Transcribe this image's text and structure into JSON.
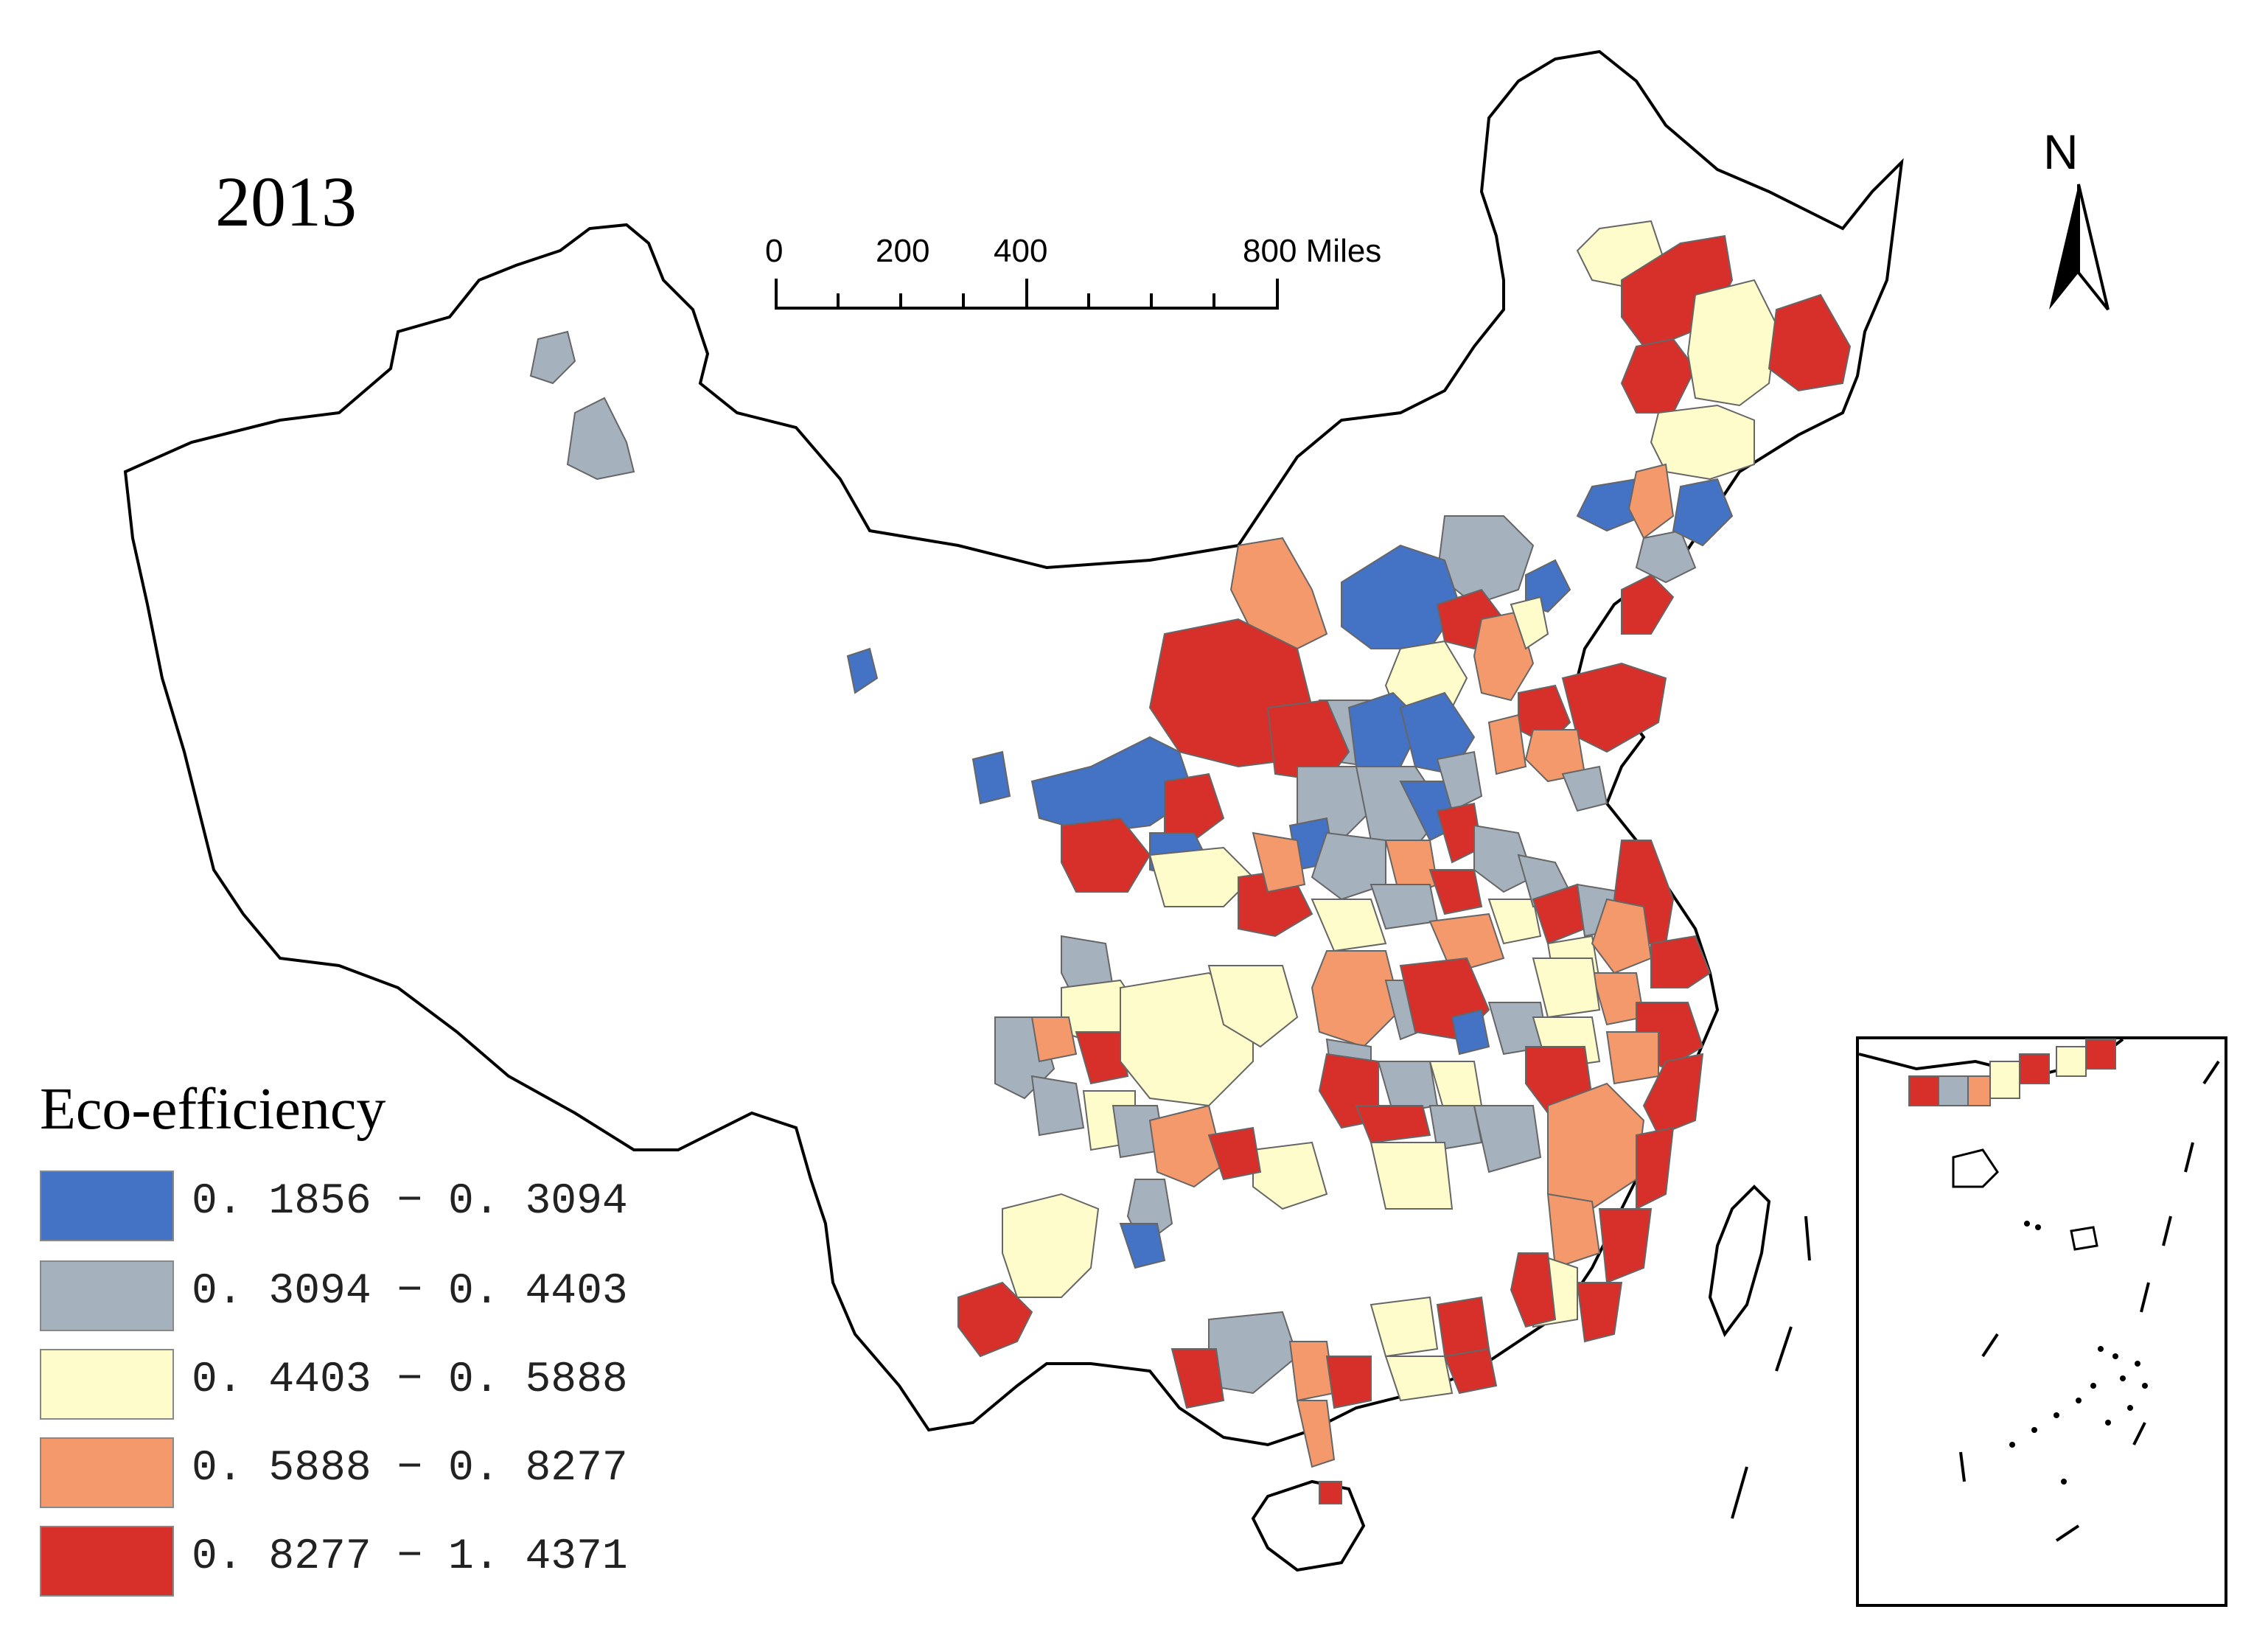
{
  "map": {
    "year": "2013",
    "legend": {
      "title": "Eco-efficiency",
      "classes": [
        {
          "label": "0. 1856 − 0. 3094",
          "color": "#4472c4"
        },
        {
          "label": "0. 3094 − 0. 4403",
          "color": "#a5b1bd"
        },
        {
          "label": "0. 4403 − 0. 5888",
          "color": "#fffccb"
        },
        {
          "label": "0. 5888 − 0. 8277",
          "color": "#f3996b"
        },
        {
          "label": "0. 8277 − 1. 4371",
          "color": "#d7302b"
        }
      ]
    },
    "scale_bar": {
      "labels": [
        "0",
        "200",
        "400",
        "800 Miles"
      ]
    },
    "north_arrow": {
      "label": "N",
      "icon": "north-arrow-icon"
    },
    "colors": {
      "outline": "#000000",
      "region_border": "#666666"
    }
  }
}
